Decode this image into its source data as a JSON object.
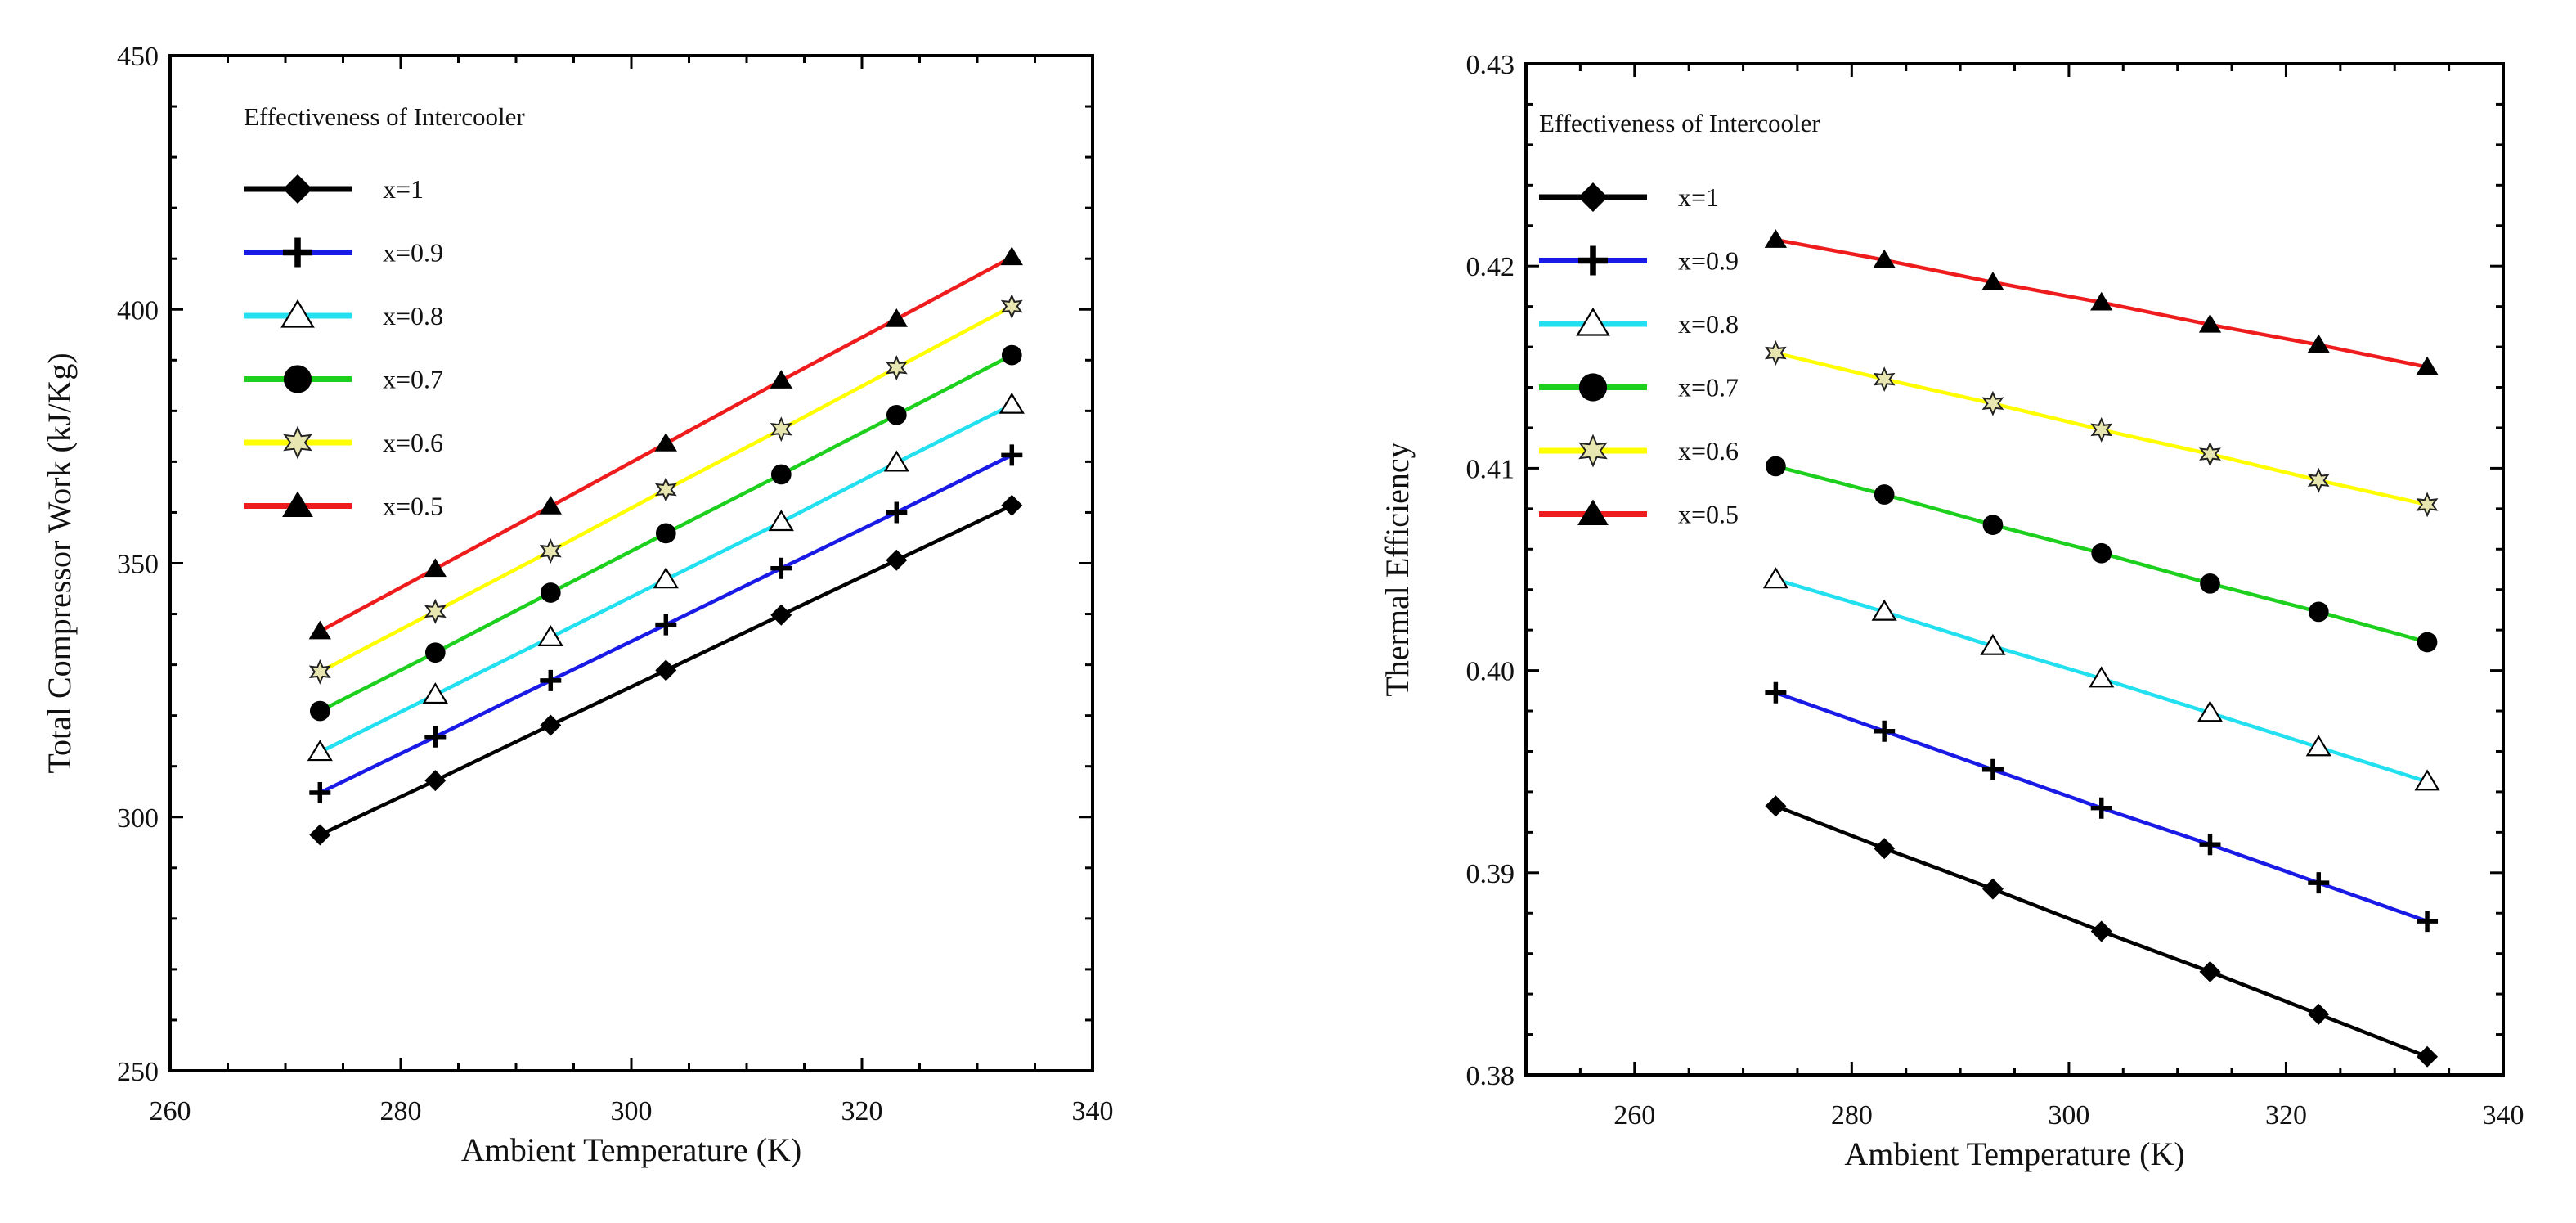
{
  "chart_data": [
    {
      "type": "line",
      "id": "compressor-work",
      "title": "",
      "xlabel": "Ambient Temperature (K)",
      "ylabel": "Total Compressor Work (kJ/Kg)",
      "xlim": [
        260,
        340
      ],
      "ylim": [
        250,
        450
      ],
      "xticks": [
        260,
        280,
        300,
        320,
        340
      ],
      "yticks": [
        250,
        300,
        350,
        400,
        450
      ],
      "grid": false,
      "legend_title": "Effectiveness of Intercooler",
      "legend_position": "top-left",
      "x": [
        273,
        283,
        293,
        303,
        313,
        323,
        333
      ],
      "series": [
        {
          "name": "x=1",
          "color": "#000000",
          "marker": "diamond",
          "values": [
            296.5,
            307.2,
            318.1,
            328.9,
            339.8,
            350.6,
            361.4
          ]
        },
        {
          "name": "x=0.9",
          "color": "#1a1ae6",
          "marker": "plus",
          "values": [
            304.8,
            315.8,
            326.9,
            337.9,
            349.0,
            360.0,
            371.3
          ]
        },
        {
          "name": "x=0.8",
          "color": "#22e0f0",
          "marker": "triangle-open",
          "values": [
            312.8,
            324.1,
            335.4,
            346.8,
            358.1,
            369.8,
            381.2
          ]
        },
        {
          "name": "x=0.7",
          "color": "#1ed01e",
          "marker": "circle",
          "values": [
            320.9,
            332.4,
            344.2,
            355.9,
            367.5,
            379.2,
            391.0
          ]
        },
        {
          "name": "x=0.6",
          "color": "#ffff00",
          "marker": "star-open",
          "values": [
            328.6,
            340.5,
            352.4,
            364.5,
            376.4,
            388.5,
            400.6
          ]
        },
        {
          "name": "x=0.5",
          "color": "#ee1c1c",
          "marker": "triangle",
          "values": [
            336.6,
            348.9,
            361.2,
            373.6,
            386.0,
            398.1,
            410.3
          ]
        }
      ]
    },
    {
      "type": "line",
      "id": "thermal-efficiency",
      "title": "",
      "xlabel": "Ambient Temperature (K)",
      "ylabel": "Thermal Efficiency",
      "xlim": [
        250,
        340
      ],
      "ylim": [
        0.38,
        0.43
      ],
      "xticks": [
        260,
        280,
        300,
        320,
        340
      ],
      "yticks": [
        0.38,
        0.39,
        0.4,
        0.41,
        0.42,
        0.43
      ],
      "ytick_labels": [
        "0.38",
        "0.39",
        "0.40",
        "0.41",
        "0.42",
        "0.43"
      ],
      "grid": false,
      "legend_title": "Effectiveness of Intercooler",
      "legend_position": "top-left",
      "x": [
        273,
        283,
        293,
        303,
        313,
        323,
        333
      ],
      "series": [
        {
          "name": "x=1",
          "color": "#000000",
          "marker": "diamond",
          "values": [
            0.3933,
            0.3912,
            0.3892,
            0.3871,
            0.3851,
            0.383,
            0.3809
          ]
        },
        {
          "name": "x=0.9",
          "color": "#1a1ae6",
          "marker": "plus",
          "values": [
            0.3989,
            0.397,
            0.3951,
            0.3932,
            0.3914,
            0.3895,
            0.3876
          ]
        },
        {
          "name": "x=0.8",
          "color": "#22e0f0",
          "marker": "triangle-open",
          "values": [
            0.4045,
            0.4029,
            0.4012,
            0.3996,
            0.3979,
            0.3962,
            0.3945
          ]
        },
        {
          "name": "x=0.7",
          "color": "#1ed01e",
          "marker": "circle",
          "values": [
            0.4101,
            0.4087,
            0.4072,
            0.4058,
            0.4043,
            0.4029,
            0.4014
          ]
        },
        {
          "name": "x=0.6",
          "color": "#ffff00",
          "marker": "star-open",
          "values": [
            0.4157,
            0.4144,
            0.4132,
            0.4119,
            0.4107,
            0.4094,
            0.4082
          ]
        },
        {
          "name": "x=0.5",
          "color": "#ee1c1c",
          "marker": "triangle",
          "values": [
            0.4213,
            0.4203,
            0.4192,
            0.4182,
            0.4171,
            0.4161,
            0.415
          ]
        }
      ]
    }
  ]
}
